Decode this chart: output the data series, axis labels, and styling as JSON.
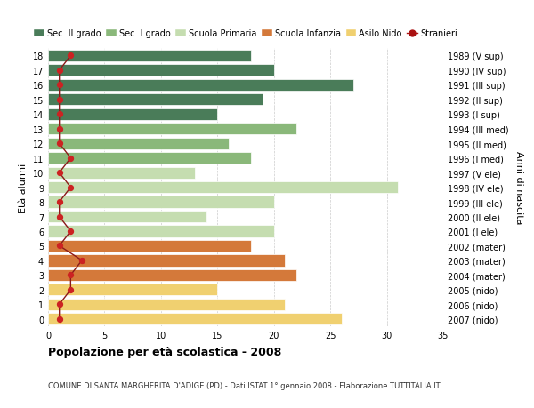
{
  "ages": [
    18,
    17,
    16,
    15,
    14,
    13,
    12,
    11,
    10,
    9,
    8,
    7,
    6,
    5,
    4,
    3,
    2,
    1,
    0
  ],
  "years": [
    "1989 (V sup)",
    "1990 (IV sup)",
    "1991 (III sup)",
    "1992 (II sup)",
    "1993 (I sup)",
    "1994 (III med)",
    "1995 (II med)",
    "1996 (I med)",
    "1997 (V ele)",
    "1998 (IV ele)",
    "1999 (III ele)",
    "2000 (II ele)",
    "2001 (I ele)",
    "2002 (mater)",
    "2003 (mater)",
    "2004 (mater)",
    "2005 (nido)",
    "2006 (nido)",
    "2007 (nido)"
  ],
  "bar_values": [
    18,
    20,
    27,
    19,
    15,
    22,
    16,
    18,
    13,
    31,
    20,
    14,
    20,
    18,
    21,
    22,
    15,
    21,
    26
  ],
  "bar_colors": [
    "#4a7c59",
    "#4a7c59",
    "#4a7c59",
    "#4a7c59",
    "#4a7c59",
    "#8ab87a",
    "#8ab87a",
    "#8ab87a",
    "#c5ddb0",
    "#c5ddb0",
    "#c5ddb0",
    "#c5ddb0",
    "#c5ddb0",
    "#d4793a",
    "#d4793a",
    "#d4793a",
    "#f0d070",
    "#f0d070",
    "#f0d070"
  ],
  "stranieri_values": [
    2,
    1,
    1,
    1,
    1,
    1,
    1,
    2,
    1,
    2,
    1,
    1,
    2,
    1,
    3,
    2,
    2,
    1,
    1
  ],
  "legend_labels": [
    "Sec. II grado",
    "Sec. I grado",
    "Scuola Primaria",
    "Scuola Infanzia",
    "Asilo Nido",
    "Stranieri"
  ],
  "legend_colors": [
    "#4a7c59",
    "#8ab87a",
    "#c5ddb0",
    "#d4793a",
    "#f0d070",
    "#aa1111"
  ],
  "title": "Popolazione per età scolastica - 2008",
  "subtitle": "COMUNE DI SANTA MARGHERITA D'ADIGE (PD) - Dati ISTAT 1° gennaio 2008 - Elaborazione TUTTITALIA.IT",
  "ylabel_left": "Età alunni",
  "ylabel_right": "Anni di nascita",
  "xlim": [
    0,
    35
  ],
  "xticks": [
    0,
    5,
    10,
    15,
    20,
    25,
    30,
    35
  ],
  "background_color": "#ffffff",
  "grid_color": "#cccccc"
}
